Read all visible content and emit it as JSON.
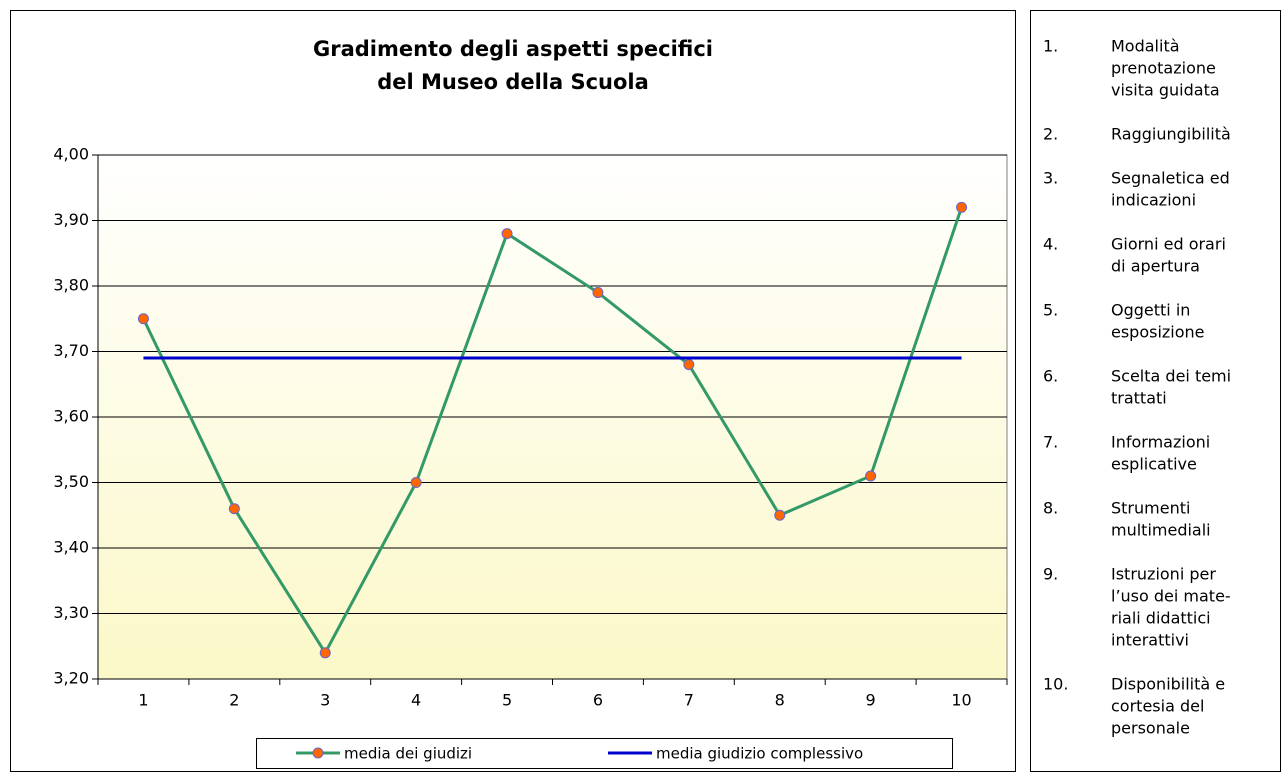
{
  "chart_data": {
    "type": "line",
    "title": [
      "Gradimento degli aspetti specifici",
      "del Museo della Scuola"
    ],
    "categories": [
      "1",
      "2",
      "3",
      "4",
      "5",
      "6",
      "7",
      "8",
      "9",
      "10"
    ],
    "series": [
      {
        "name": "media dei giudizi",
        "color": "#339966",
        "marker_color": "#ff6600",
        "values": [
          3.75,
          3.46,
          3.24,
          3.5,
          3.88,
          3.79,
          3.68,
          3.45,
          3.51,
          3.92
        ]
      },
      {
        "name": "media giudizio complessivo",
        "color": "#0000cc",
        "values": [
          3.69,
          3.69,
          3.69,
          3.69,
          3.69,
          3.69,
          3.69,
          3.69,
          3.69,
          3.69
        ]
      }
    ],
    "ylim": [
      3.2,
      4.0
    ],
    "yticks": [
      {
        "value": 3.2,
        "label": "3,20"
      },
      {
        "value": 3.3,
        "label": "3,30"
      },
      {
        "value": 3.4,
        "label": "3,40"
      },
      {
        "value": 3.5,
        "label": "3,50"
      },
      {
        "value": 3.6,
        "label": "3,60"
      },
      {
        "value": 3.7,
        "label": "3,70"
      },
      {
        "value": 3.8,
        "label": "3,80"
      },
      {
        "value": 3.9,
        "label": "3,90"
      },
      {
        "value": 4.0,
        "label": "4,00"
      }
    ],
    "grid": true,
    "legend": "bottom"
  },
  "side_panel": {
    "items": [
      {
        "number": "1.",
        "lines": [
          "Modalità",
          "prenotazione",
          "visita guidata"
        ]
      },
      {
        "number": "2.",
        "lines": [
          "Raggiungibilità"
        ]
      },
      {
        "number": "3.",
        "lines": [
          "Segnaletica ed",
          "indicazioni"
        ]
      },
      {
        "number": "4.",
        "lines": [
          "Giorni ed orari",
          "di apertura"
        ]
      },
      {
        "number": "5.",
        "lines": [
          "Oggetti in",
          "esposizione"
        ]
      },
      {
        "number": "6.",
        "lines": [
          "Scelta dei temi",
          "trattati"
        ]
      },
      {
        "number": "7.",
        "lines": [
          "Informazioni",
          "esplicative"
        ]
      },
      {
        "number": "8.",
        "lines": [
          "Strumenti",
          "multimediali"
        ]
      },
      {
        "number": "9.",
        "lines": [
          "Istruzioni per",
          "l’uso dei mate-",
          "riali didattici",
          "interattivi"
        ]
      },
      {
        "number": "10.",
        "lines": [
          "Disponibilità e",
          "cortesia del",
          "personale"
        ]
      }
    ]
  }
}
